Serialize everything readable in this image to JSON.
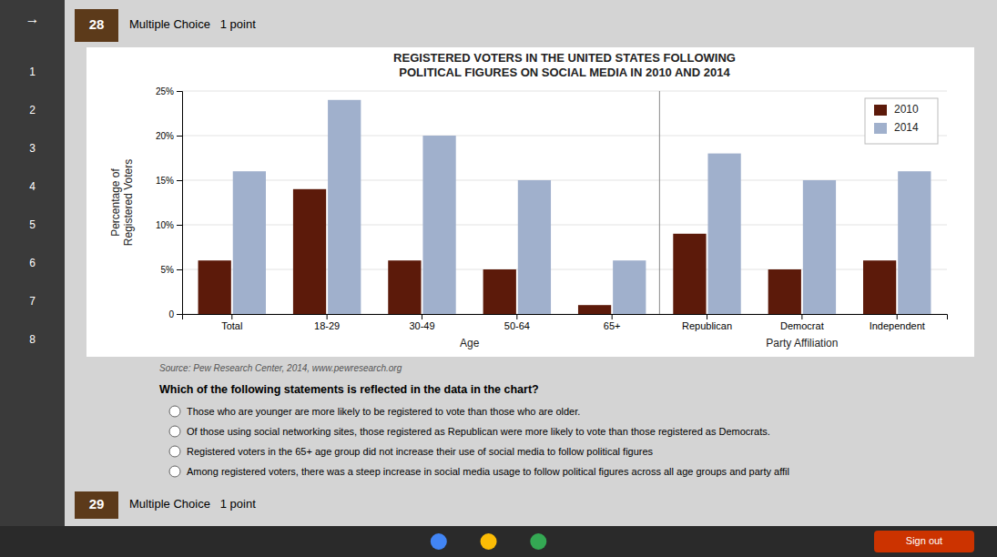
{
  "chart_data": {
    "type": "bar",
    "title": "REGISTERED VOTERS IN THE UNITED STATES FOLLOWING\nPOLITICAL FIGURES ON SOCIAL MEDIA IN 2010 AND 2014",
    "categories": [
      "Total",
      "18-29",
      "30-49",
      "50-64",
      "65+",
      "Republican",
      "Democrat",
      "Independent"
    ],
    "series": [
      {
        "name": "2010",
        "color": "#5c1a0a",
        "values": [
          6,
          14,
          6,
          5,
          1,
          9,
          5,
          6
        ]
      },
      {
        "name": "2014",
        "color": "#a0b0cc",
        "values": [
          16,
          24,
          20,
          15,
          6,
          18,
          15,
          16
        ]
      }
    ],
    "ylabel": "Percentage of\nRegistered Voters",
    "annotations": [
      "Age",
      "Party Affiliation"
    ],
    "source": "Source: Pew Research Center, 2014, www.pewresearch.org",
    "ylim": [
      0,
      25
    ],
    "yticks": [
      0,
      {
        "value": 5,
        "label": "5%"
      },
      {
        "value": 10,
        "label": "10%"
      },
      {
        "value": 15,
        "label": "15%"
      },
      {
        "value": 20,
        "label": "20%"
      },
      {
        "value": 25,
        "label": "25%"
      }
    ],
    "grid": true,
    "legend": "top-right"
  },
  "page": {
    "sidebar_arrow": "→",
    "nav_numbers": [
      "1",
      "2",
      "3",
      "4",
      "5",
      "6",
      "7",
      "8"
    ],
    "header_number": "28",
    "header_label": "Multiple Choice   1 point",
    "question": "Which of the following statements is reflected in the data in the chart?",
    "answers": [
      "Those who are younger are more likely to be registered to vote than those who are older.",
      "Of those using social networking sites, those registered as Republican were more likely to vote than those registered as Democrats.",
      "Registered voters in the 65+ age group did not increase their use of social media to follow political figures",
      "Among registered voters, there was a steep increase in social media usage to follow political figures across all age groups and party affil"
    ],
    "footer_number": "29",
    "footer_label": "Multiple Choice   1 point",
    "sign_out": "Sign out"
  }
}
